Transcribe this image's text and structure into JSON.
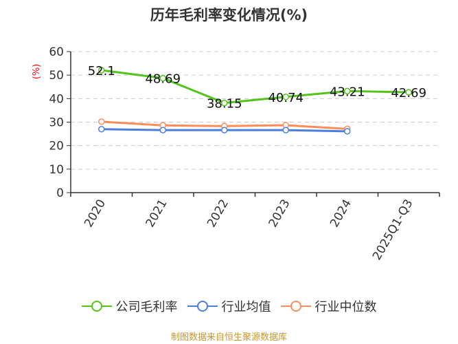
{
  "title": "历年毛利率变化情况(%)",
  "source": "制图数据来自恒生聚源数据库",
  "colors": {
    "company": "#52c41a",
    "industry_avg": "#4a7fe0",
    "industry_median": "#ff8c5a",
    "ylabel": "#ff0000",
    "source": "#c8962d"
  },
  "legend": [
    {
      "label": "公司毛利率",
      "color": "#52c41a"
    },
    {
      "label": "行业均值",
      "color": "#4a7fe0"
    },
    {
      "label": "行业中位数",
      "color": "#ff8c5a"
    }
  ],
  "chart_data": {
    "type": "line",
    "title": "历年毛利率变化情况(%)",
    "xlabel": "",
    "ylabel": "(%)",
    "categories": [
      "2020",
      "2021",
      "2022",
      "2023",
      "2024",
      "2025Q1-Q3"
    ],
    "ylim": [
      0,
      60
    ],
    "yticks": [
      0,
      10,
      20,
      30,
      40,
      50,
      60
    ],
    "grid": "horizontal dashed",
    "legend_position": "bottom",
    "series": [
      {
        "name": "公司毛利率",
        "values": [
          52.1,
          48.69,
          38.15,
          40.74,
          43.21,
          42.69
        ],
        "labels": [
          "52.1",
          "48.69",
          "38.15",
          "40.74",
          "43.21",
          "42.69"
        ]
      },
      {
        "name": "行业均值",
        "values": [
          27.0,
          26.6,
          26.6,
          26.6,
          26.1,
          null
        ]
      },
      {
        "name": "行业中位数",
        "values": [
          30.2,
          28.6,
          28.3,
          28.7,
          27.1,
          null
        ]
      }
    ]
  }
}
